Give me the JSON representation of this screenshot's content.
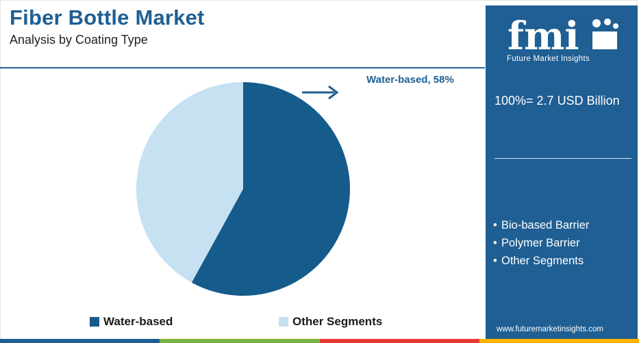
{
  "header": {
    "title": "Fiber Bottle Market",
    "subtitle": "Analysis by Coating Type"
  },
  "panel": {
    "logo_text": "fmi",
    "logo_caption": "Future Market Insights",
    "total_label": "100%= 2.7 USD Billion",
    "segments": [
      "Bio-based Barrier",
      "Polymer Barrier",
      "Other Segments"
    ],
    "website": "www.futuremarketinsights.com"
  },
  "callout": {
    "label": "Water-based, 58%",
    "arrow_icon": "right-arrow-icon"
  },
  "colors": {
    "brand_blue": "#1f5f93",
    "water_based": "#155b8c",
    "other_segments": "#c6e1f2",
    "bar_segments": [
      "#1f5f93",
      "#7cb342",
      "#e53935",
      "#ffb300"
    ]
  },
  "chart_data": {
    "type": "pie",
    "title": "Fiber Bottle Market",
    "subtitle": "Analysis by Coating Type",
    "slices": [
      {
        "label": "Water-based",
        "value": 58,
        "color": "#155b8c"
      },
      {
        "label": "Other Segments",
        "value": 42,
        "color": "#c6e1f2"
      }
    ],
    "legend": [
      "Water-based",
      "Other Segments"
    ],
    "legend_position": "bottom",
    "start_angle": "top",
    "direction": "clockwise",
    "data_labels": [
      "Water-based, 58%"
    ]
  }
}
